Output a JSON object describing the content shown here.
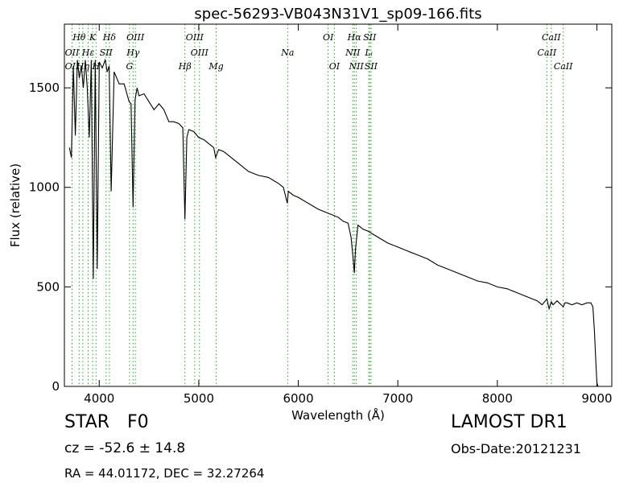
{
  "chart_data": {
    "type": "line",
    "title": "spec-56293-VB043N31V1_sp09-166.fits",
    "xlabel": "Wavelength (Å)",
    "ylabel": "Flux (relative)",
    "xlim": [
      3650,
      9150
    ],
    "ylim": [
      0,
      1820
    ],
    "xticks": [
      4000,
      5000,
      6000,
      7000,
      8000,
      9000
    ],
    "yticks": [
      0,
      500,
      1000,
      1500
    ],
    "grid": false,
    "line_color": "#000000",
    "marker_color": "#2ca02c",
    "spectrum": {
      "name": "flux",
      "x": [
        3700,
        3720,
        3740,
        3760,
        3780,
        3800,
        3820,
        3840,
        3860,
        3880,
        3900,
        3920,
        3940,
        3960,
        3980,
        4000,
        4030,
        4060,
        4080,
        4100,
        4120,
        4150,
        4200,
        4250,
        4300,
        4320,
        4340,
        4360,
        4380,
        4400,
        4450,
        4500,
        4550,
        4600,
        4650,
        4700,
        4750,
        4800,
        4840,
        4861,
        4880,
        4900,
        4950,
        5000,
        5050,
        5100,
        5150,
        5170,
        5184,
        5200,
        5250,
        5300,
        5400,
        5500,
        5600,
        5700,
        5800,
        5850,
        5890,
        5900,
        5950,
        6000,
        6100,
        6200,
        6300,
        6400,
        6450,
        6500,
        6530,
        6550,
        6563,
        6575,
        6600,
        6650,
        6700,
        6800,
        6900,
        7000,
        7100,
        7200,
        7300,
        7400,
        7500,
        7600,
        7700,
        7800,
        7900,
        8000,
        8100,
        8200,
        8300,
        8400,
        8450,
        8498,
        8520,
        8542,
        8560,
        8600,
        8662,
        8680,
        8700,
        8750,
        8800,
        8850,
        8900,
        8940,
        8960,
        8975,
        8990,
        9000,
        9010
      ],
      "y": [
        1200,
        1150,
        1610,
        1260,
        1640,
        1550,
        1610,
        1500,
        1640,
        1500,
        1250,
        1640,
        540,
        1640,
        590,
        1630,
        1600,
        1640,
        1580,
        1610,
        980,
        1580,
        1520,
        1520,
        1430,
        1420,
        900,
        1440,
        1500,
        1460,
        1470,
        1430,
        1390,
        1420,
        1390,
        1330,
        1330,
        1320,
        1300,
        840,
        1250,
        1290,
        1280,
        1250,
        1240,
        1220,
        1200,
        1150,
        1170,
        1190,
        1180,
        1160,
        1120,
        1080,
        1060,
        1050,
        1020,
        1000,
        920,
        980,
        960,
        950,
        920,
        890,
        870,
        850,
        830,
        820,
        750,
        650,
        570,
        690,
        810,
        790,
        780,
        750,
        720,
        700,
        680,
        660,
        640,
        610,
        590,
        570,
        550,
        530,
        520,
        500,
        490,
        470,
        450,
        430,
        410,
        440,
        390,
        425,
        410,
        430,
        400,
        420,
        420,
        410,
        420,
        410,
        420,
        420,
        400,
        280,
        120,
        20,
        0
      ]
    },
    "line_markers": [
      {
        "label": "Hθ",
        "x": 3798,
        "row": 0
      },
      {
        "label": "K",
        "x": 3934,
        "row": 0
      },
      {
        "label": "Hδ",
        "x": 4102,
        "row": 0
      },
      {
        "label": "OIII",
        "x": 4363,
        "row": 0
      },
      {
        "label": "OIII",
        "x": 4959,
        "row": 0
      },
      {
        "label": "OI",
        "x": 6300,
        "row": 0
      },
      {
        "label": "Hα",
        "x": 6563,
        "row": 0
      },
      {
        "label": "SII",
        "x": 6717,
        "row": 0
      },
      {
        "label": "CaII",
        "x": 8542,
        "row": 0
      },
      {
        "label": "OII",
        "x": 3727,
        "row": 1
      },
      {
        "label": "Hε",
        "x": 3889,
        "row": 1
      },
      {
        "label": "SII",
        "x": 4069,
        "row": 1
      },
      {
        "label": "Hγ",
        "x": 4340,
        "row": 1
      },
      {
        "label": "OIII",
        "x": 5007,
        "row": 1
      },
      {
        "label": "Na",
        "x": 5893,
        "row": 1
      },
      {
        "label": "NII",
        "x": 6548,
        "row": 1
      },
      {
        "label": "Lᵢ",
        "x": 6708,
        "row": 1
      },
      {
        "label": "CaII",
        "x": 8498,
        "row": 1
      },
      {
        "label": "OII",
        "x": 3727,
        "row": 2
      },
      {
        "label": "Hη",
        "x": 3835,
        "row": 2
      },
      {
        "label": "H",
        "x": 3968,
        "row": 2
      },
      {
        "label": "G",
        "x": 4304,
        "row": 2
      },
      {
        "label": "Hβ",
        "x": 4861,
        "row": 2
      },
      {
        "label": "Mg",
        "x": 5175,
        "row": 2
      },
      {
        "label": "OI",
        "x": 6363,
        "row": 2
      },
      {
        "label": "NII",
        "x": 6583,
        "row": 2
      },
      {
        "label": "SII",
        "x": 6731,
        "row": 2
      },
      {
        "label": "CaII",
        "x": 8662,
        "row": 2
      }
    ]
  },
  "info": {
    "object_class": "STAR",
    "subclass": "F0",
    "cz": "cz = -52.6 ± 14.8",
    "radec": "RA = 44.01172, DEC = 32.27264",
    "survey": "LAMOST DR1",
    "obs_date": "Obs-Date:20121231"
  }
}
